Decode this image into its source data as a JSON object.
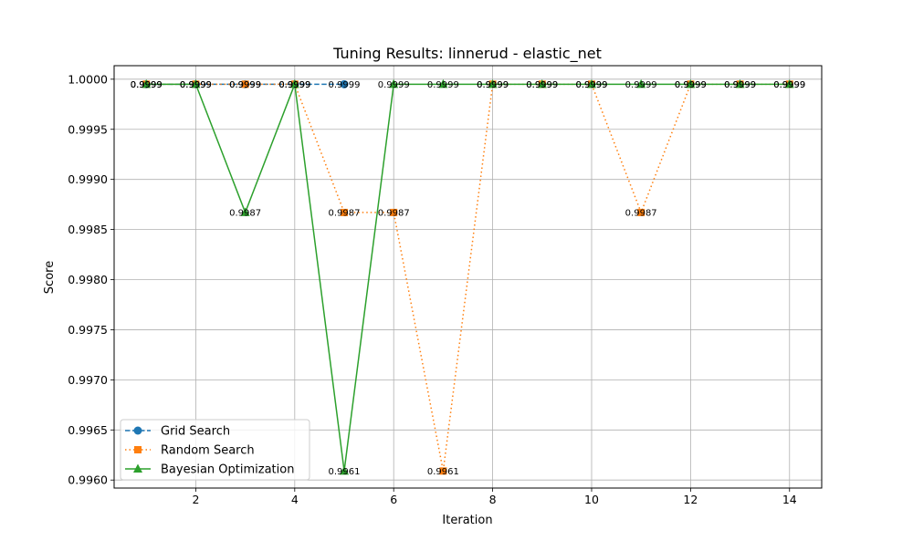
{
  "chart_data": {
    "type": "line",
    "title": "Tuning Results: linnerud - elastic_net",
    "xlabel": "Iteration",
    "ylabel": "Score",
    "xlim": [
      0.35,
      14.65
    ],
    "ylim": [
      0.99592,
      1.000135
    ],
    "x_ticks": [
      2,
      4,
      6,
      8,
      10,
      12,
      14
    ],
    "y_ticks": [
      0.996,
      0.9965,
      0.997,
      0.9975,
      0.998,
      0.9985,
      0.999,
      0.9995,
      1.0
    ],
    "x_tick_labels": [
      "2",
      "4",
      "6",
      "8",
      "10",
      "12",
      "14"
    ],
    "y_tick_labels": [
      "0.9960",
      "0.9965",
      "0.9970",
      "0.9975",
      "0.9980",
      "0.9985",
      "0.9990",
      "0.9995",
      "1.0000"
    ],
    "grid": true,
    "legend_position": "lower-left",
    "series": [
      {
        "name": "Grid Search",
        "color": "#1f77b4",
        "marker": "circle",
        "linestyle": "dashed",
        "x": [
          1,
          2,
          3,
          4,
          5
        ],
        "values": [
          0.99995,
          0.99995,
          0.99995,
          0.99995,
          0.99995
        ],
        "labels": [
          "0.9999",
          "0.9999",
          "0.9999",
          "0.9999",
          "0.9999"
        ]
      },
      {
        "name": "Random Search",
        "color": "#ff7f0e",
        "marker": "square",
        "linestyle": "dotted",
        "x": [
          1,
          2,
          3,
          4,
          5,
          6,
          7,
          8,
          9,
          10,
          11,
          12,
          13,
          14
        ],
        "values": [
          0.99995,
          0.99995,
          0.99995,
          0.99995,
          0.99867,
          0.99867,
          0.99609,
          0.99995,
          0.99995,
          0.99995,
          0.99867,
          0.99995,
          0.99995,
          0.99995
        ],
        "labels": [
          "0.9999",
          "0.9999",
          "0.9999",
          "0.9999",
          "0.9987",
          "0.9987",
          "0.9961",
          "0.9999",
          "0.9999",
          "0.9999",
          "0.9987",
          "0.9999",
          "0.9999",
          "0.9999"
        ]
      },
      {
        "name": "Bayesian Optimization",
        "color": "#2ca02c",
        "marker": "triangle",
        "linestyle": "solid",
        "x": [
          1,
          2,
          3,
          4,
          5,
          6,
          7,
          8,
          9,
          10,
          11,
          12,
          13,
          14
        ],
        "values": [
          0.99995,
          0.99995,
          0.99867,
          0.99995,
          0.99609,
          0.99995,
          0.99995,
          0.99995,
          0.99995,
          0.99995,
          0.99995,
          0.99995,
          0.99995,
          0.99995
        ],
        "labels": [
          "0.9999",
          "0.9999",
          "0.9987",
          "0.9999",
          "0.9961",
          "0.9999",
          "0.9999",
          "0.9999",
          "0.9999",
          "0.9999",
          "0.9999",
          "0.9999",
          "0.9999",
          "0.9999"
        ]
      }
    ]
  }
}
